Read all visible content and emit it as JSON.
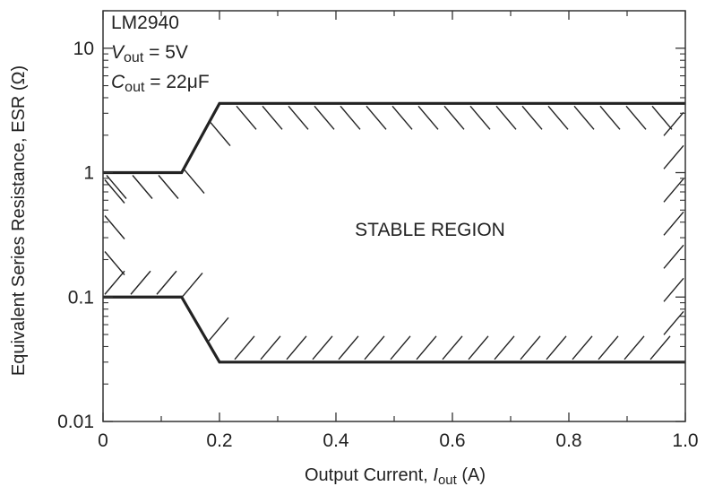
{
  "chart_data": {
    "type": "line",
    "xlabel": {
      "prefix": "Output Current, ",
      "var": "I",
      "sub": "out",
      "suffix": " (A)"
    },
    "ylabel": "Equivalent Series Resistance, ESR (Ω)",
    "xlim": [
      0,
      1.0
    ],
    "ylim": [
      0.01,
      20
    ],
    "y_scale": "log",
    "grid": false,
    "x_ticks": [
      0,
      0.2,
      0.4,
      0.6,
      0.8,
      1.0
    ],
    "x_tick_labels": [
      "0",
      "0.2",
      "0.4",
      "0.6",
      "0.8",
      "1.0"
    ],
    "y_ticks": [
      0.01,
      0.1,
      1,
      10
    ],
    "y_tick_labels": [
      "0.01",
      "0.1",
      "1",
      "10"
    ],
    "annotation": {
      "device": "LM2940",
      "vout": {
        "var": "V",
        "sub": "out",
        "value": " = 5V"
      },
      "cout": {
        "var": "C",
        "sub": "out",
        "value": " = 22μF"
      }
    },
    "region_label": "STABLE REGION",
    "series": [
      {
        "role": "upper-boundary",
        "x": [
          0,
          0.135,
          0.2,
          1.0
        ],
        "y": [
          1.0,
          1.0,
          3.6,
          3.6
        ]
      },
      {
        "role": "lower-boundary",
        "x": [
          0,
          0.135,
          0.2,
          1.0
        ],
        "y": [
          0.1,
          0.1,
          0.03,
          0.03
        ]
      }
    ],
    "colors": {
      "line": "#222222",
      "axis": "#333333",
      "hatch": "#222222"
    }
  }
}
